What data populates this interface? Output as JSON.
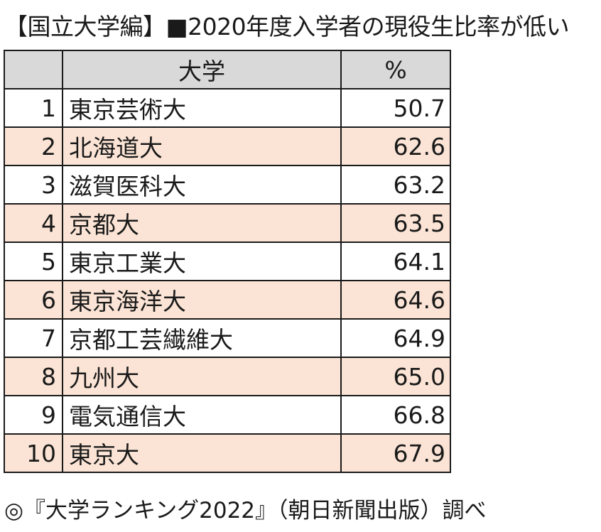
{
  "title": "【国立大学編】■2020年度入学者の現役生比率が低い",
  "footer": "◎『大学ランキング2022』（朝日新聞出版）調べ",
  "colors": {
    "header_bg": "#d9d9d9",
    "alt_row_bg": "#fbe4d5",
    "border": "#1a1a1a"
  },
  "chart_data": {
    "type": "table",
    "columns": [
      "",
      "大学",
      "%"
    ],
    "rows": [
      {
        "rank": "1",
        "name": "東京芸術大",
        "value": "50.7"
      },
      {
        "rank": "2",
        "name": "北海道大",
        "value": "62.6"
      },
      {
        "rank": "3",
        "name": "滋賀医科大",
        "value": "63.2"
      },
      {
        "rank": "4",
        "name": "京都大",
        "value": "63.5"
      },
      {
        "rank": "5",
        "name": "東京工業大",
        "value": "64.1"
      },
      {
        "rank": "6",
        "name": "東京海洋大",
        "value": "64.6"
      },
      {
        "rank": "7",
        "name": "京都工芸繊維大",
        "value": "64.9"
      },
      {
        "rank": "8",
        "name": "九州大",
        "value": "65.0"
      },
      {
        "rank": "9",
        "name": "電気通信大",
        "value": "66.8"
      },
      {
        "rank": "10",
        "name": "東京大",
        "value": "67.9"
      }
    ]
  }
}
